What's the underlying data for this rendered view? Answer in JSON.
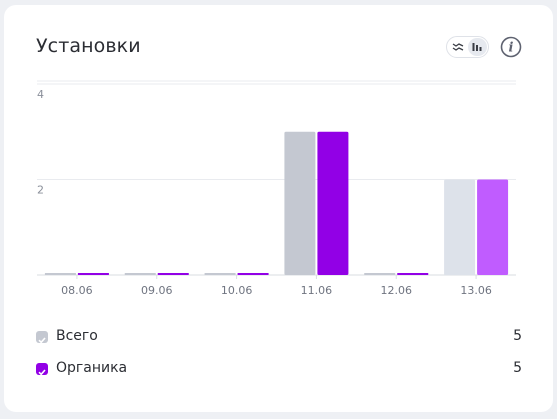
{
  "card": {
    "title": "Установки"
  },
  "controls": {
    "toggle_icons": [
      "line-chart-icon",
      "bar-chart-icon"
    ],
    "active": "bar-chart-icon",
    "info_icon": "info-icon"
  },
  "chart_data": {
    "type": "bar",
    "categories": [
      "08.06",
      "09.06",
      "10.06",
      "11.06",
      "12.06",
      "13.06"
    ],
    "series": [
      {
        "name": "Всего",
        "values": [
          0,
          0,
          0,
          3,
          0,
          2
        ]
      },
      {
        "name": "Органика",
        "values": [
          0,
          0,
          0,
          3,
          0,
          2
        ]
      }
    ],
    "y_ticks": [
      2,
      4
    ],
    "ylim": [
      0,
      4
    ],
    "grid": true,
    "legend_placement": "bottom",
    "colors": {
      "total": "#c4c8d1",
      "total_last": "#dde2ea",
      "organic": "#9200e6",
      "organic_last": "#c05cff"
    }
  },
  "legend": [
    {
      "label": "Всего",
      "value": "5",
      "color": "#c4c8d1"
    },
    {
      "label": "Органика",
      "value": "5",
      "color": "#9200e6"
    }
  ]
}
